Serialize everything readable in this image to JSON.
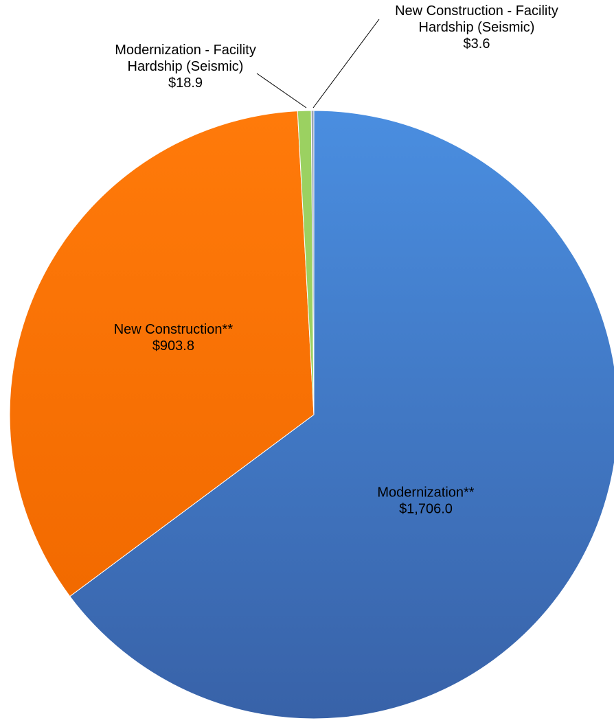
{
  "chart_data": {
    "type": "pie",
    "title": "",
    "start_angle_deg": 0,
    "direction": "clockwise",
    "legend": "none",
    "slices": [
      {
        "label_lines": [
          "Modernization**"
        ],
        "value_label": "$1,706.0",
        "value": 1706.0,
        "color": "#3E7CCB",
        "label_placement": "inside"
      },
      {
        "label_lines": [
          "New Construction**"
        ],
        "value_label": "$903.8",
        "value": 903.8,
        "color": "#FF7400",
        "label_placement": "inside"
      },
      {
        "label_lines": [
          "Modernization - Facility",
          "Hardship (Seismic)"
        ],
        "value_label": "$18.9",
        "value": 18.9,
        "color": "#9BD161",
        "label_placement": "outside-left"
      },
      {
        "label_lines": [
          "New Construction - Facility",
          "Hardship (Seismic)"
        ],
        "value_label": "$3.6",
        "value": 3.6,
        "color": "#9AA5B4",
        "label_placement": "outside-right"
      }
    ]
  }
}
